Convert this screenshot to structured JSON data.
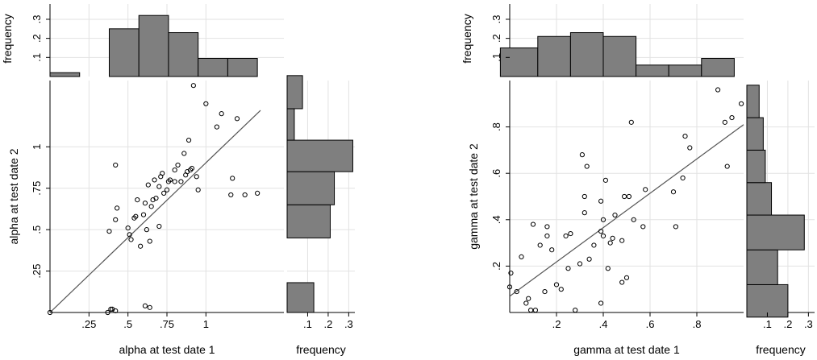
{
  "chart_data": [
    {
      "type": "scatter",
      "xlabel": "alpha at test date 1",
      "ylabel": "alpha at test date 2",
      "xlim": [
        0,
        1.5
      ],
      "ylim": [
        0,
        1.4
      ],
      "xticks": [
        {
          "v": 0.25,
          "label": ".25"
        },
        {
          "v": 0.5,
          "label": ".5"
        },
        {
          "v": 0.75,
          "label": ".75"
        },
        {
          "v": 1,
          "label": "1"
        }
      ],
      "yticks": [
        {
          "v": 0.25,
          "label": ".25"
        },
        {
          "v": 0.5,
          "label": ".5"
        },
        {
          "v": 0.75,
          "label": ".75"
        },
        {
          "v": 1,
          "label": "1"
        }
      ],
      "grid": true,
      "fit_line": {
        "x": [
          0,
          1.35
        ],
        "y": [
          0,
          1.22
        ]
      },
      "points": [
        [
          0,
          0
        ],
        [
          0.37,
          0
        ],
        [
          0.39,
          0.02
        ],
        [
          0.4,
          0.02
        ],
        [
          0.42,
          0.01
        ],
        [
          0.61,
          0.04
        ],
        [
          0.64,
          0.03
        ],
        [
          0.38,
          0.49
        ],
        [
          0.42,
          0.56
        ],
        [
          0.43,
          0.63
        ],
        [
          0.42,
          0.89
        ],
        [
          0.5,
          0.51
        ],
        [
          0.51,
          0.47
        ],
        [
          0.52,
          0.44
        ],
        [
          0.54,
          0.57
        ],
        [
          0.55,
          0.58
        ],
        [
          0.56,
          0.68
        ],
        [
          0.58,
          0.4
        ],
        [
          0.6,
          0.59
        ],
        [
          0.61,
          0.66
        ],
        [
          0.62,
          0.5
        ],
        [
          0.63,
          0.77
        ],
        [
          0.64,
          0.43
        ],
        [
          0.65,
          0.64
        ],
        [
          0.66,
          0.68
        ],
        [
          0.67,
          0.8
        ],
        [
          0.68,
          0.69
        ],
        [
          0.7,
          0.52
        ],
        [
          0.7,
          0.76
        ],
        [
          0.71,
          0.82
        ],
        [
          0.72,
          0.84
        ],
        [
          0.73,
          0.72
        ],
        [
          0.75,
          0.74
        ],
        [
          0.76,
          0.79
        ],
        [
          0.77,
          0.8
        ],
        [
          0.8,
          0.79
        ],
        [
          0.8,
          0.86
        ],
        [
          0.82,
          0.89
        ],
        [
          0.84,
          0.79
        ],
        [
          0.86,
          0.96
        ],
        [
          0.87,
          0.83
        ],
        [
          0.88,
          0.85
        ],
        [
          0.89,
          1.04
        ],
        [
          0.9,
          0.86
        ],
        [
          0.91,
          0.87
        ],
        [
          0.92,
          1.37
        ],
        [
          0.94,
          0.82
        ],
        [
          0.95,
          0.74
        ],
        [
          1.0,
          1.26
        ],
        [
          1.07,
          1.12
        ],
        [
          1.1,
          1.2
        ],
        [
          1.16,
          0.71
        ],
        [
          1.17,
          0.81
        ],
        [
          1.2,
          1.17
        ],
        [
          1.25,
          0.71
        ],
        [
          1.33,
          0.72
        ]
      ],
      "top_hist": {
        "ylabel": "frequency",
        "yticks": [
          {
            "v": 0.1,
            "label": ".1"
          },
          {
            "v": 0.2,
            "label": ".2"
          },
          {
            "v": 0.3,
            "label": ".3"
          }
        ],
        "ylim": [
          0,
          0.38
        ],
        "bins": [
          {
            "x0": 0.0,
            "x1": 0.19,
            "freq": 0.02
          },
          {
            "x0": 0.38,
            "x1": 0.57,
            "freq": 0.25
          },
          {
            "x0": 0.57,
            "x1": 0.76,
            "freq": 0.32
          },
          {
            "x0": 0.76,
            "x1": 0.95,
            "freq": 0.23
          },
          {
            "x0": 0.95,
            "x1": 1.14,
            "freq": 0.095
          },
          {
            "x0": 1.14,
            "x1": 1.33,
            "freq": 0.095
          }
        ]
      },
      "side_hist": {
        "xlabel": "frequency",
        "xticks": [
          {
            "v": 0.1,
            "label": ".1"
          },
          {
            "v": 0.2,
            "label": ".2"
          },
          {
            "v": 0.3,
            "label": ".3"
          }
        ],
        "xlim": [
          0,
          0.33
        ],
        "bins": [
          {
            "y0": 0.0,
            "y1": 0.18,
            "freq": 0.13
          },
          {
            "y0": 0.45,
            "y1": 0.65,
            "freq": 0.21
          },
          {
            "y0": 0.65,
            "y1": 0.85,
            "freq": 0.23
          },
          {
            "y0": 0.85,
            "y1": 1.04,
            "freq": 0.32
          },
          {
            "y0": 1.04,
            "y1": 1.23,
            "freq": 0.035
          },
          {
            "y0": 1.23,
            "y1": 1.43,
            "freq": 0.075
          }
        ]
      }
    },
    {
      "type": "scatter",
      "xlabel": "gamma at test date 1",
      "ylabel": "gamma at test date 2",
      "xlim": [
        0,
        1.0
      ],
      "ylim": [
        0,
        1.0
      ],
      "xticks": [
        {
          "v": 0.2,
          "label": ".2"
        },
        {
          "v": 0.4,
          "label": ".4"
        },
        {
          "v": 0.6,
          "label": ".6"
        },
        {
          "v": 0.8,
          "label": ".8"
        }
      ],
      "yticks": [
        {
          "v": 0.2,
          "label": ".2"
        },
        {
          "v": 0.4,
          "label": ".4"
        },
        {
          "v": 0.6,
          "label": ".6"
        },
        {
          "v": 0.8,
          "label": ".8"
        }
      ],
      "grid": true,
      "fit_line": {
        "x": [
          0,
          1.0
        ],
        "y": [
          0.07,
          0.81
        ]
      },
      "points": [
        [
          0.0,
          0.11
        ],
        [
          0.005,
          0.17
        ],
        [
          0.03,
          0.09
        ],
        [
          0.05,
          0.24
        ],
        [
          0.07,
          0.04
        ],
        [
          0.08,
          0.06
        ],
        [
          0.09,
          0.01
        ],
        [
          0.1,
          0.38
        ],
        [
          0.11,
          0.01
        ],
        [
          0.13,
          0.29
        ],
        [
          0.15,
          0.09
        ],
        [
          0.16,
          0.37
        ],
        [
          0.16,
          0.33
        ],
        [
          0.18,
          0.27
        ],
        [
          0.2,
          0.12
        ],
        [
          0.22,
          0.1
        ],
        [
          0.24,
          0.33
        ],
        [
          0.25,
          0.19
        ],
        [
          0.26,
          0.34
        ],
        [
          0.28,
          0.01
        ],
        [
          0.3,
          0.21
        ],
        [
          0.31,
          0.68
        ],
        [
          0.32,
          0.43
        ],
        [
          0.32,
          0.5
        ],
        [
          0.33,
          0.63
        ],
        [
          0.34,
          0.23
        ],
        [
          0.36,
          0.29
        ],
        [
          0.39,
          0.04
        ],
        [
          0.39,
          0.35
        ],
        [
          0.39,
          0.48
        ],
        [
          0.4,
          0.33
        ],
        [
          0.4,
          0.4
        ],
        [
          0.41,
          0.57
        ],
        [
          0.42,
          0.19
        ],
        [
          0.43,
          0.3
        ],
        [
          0.44,
          0.32
        ],
        [
          0.45,
          0.42
        ],
        [
          0.48,
          0.13
        ],
        [
          0.48,
          0.31
        ],
        [
          0.49,
          0.5
        ],
        [
          0.5,
          0.15
        ],
        [
          0.51,
          0.5
        ],
        [
          0.52,
          0.82
        ],
        [
          0.53,
          0.4
        ],
        [
          0.57,
          0.37
        ],
        [
          0.58,
          0.53
        ],
        [
          0.7,
          0.52
        ],
        [
          0.71,
          0.37
        ],
        [
          0.74,
          0.58
        ],
        [
          0.75,
          0.76
        ],
        [
          0.77,
          0.71
        ],
        [
          0.89,
          0.96
        ],
        [
          0.92,
          0.82
        ],
        [
          0.93,
          0.63
        ],
        [
          0.95,
          0.84
        ],
        [
          0.99,
          0.9
        ]
      ],
      "top_hist": {
        "ylabel": "frequency",
        "yticks": [
          {
            "v": 0.1,
            "label": ".1"
          },
          {
            "v": 0.2,
            "label": ".2"
          },
          {
            "v": 0.3,
            "label": ".3"
          }
        ],
        "ylim": [
          0,
          0.38
        ],
        "bins": [
          {
            "x0": -0.04,
            "x1": 0.12,
            "freq": 0.15
          },
          {
            "x0": 0.12,
            "x1": 0.26,
            "freq": 0.21
          },
          {
            "x0": 0.26,
            "x1": 0.4,
            "freq": 0.23
          },
          {
            "x0": 0.4,
            "x1": 0.54,
            "freq": 0.21
          },
          {
            "x0": 0.54,
            "x1": 0.68,
            "freq": 0.06
          },
          {
            "x0": 0.68,
            "x1": 0.82,
            "freq": 0.06
          },
          {
            "x0": 0.82,
            "x1": 0.96,
            "freq": 0.095
          }
        ]
      },
      "side_hist": {
        "xlabel": "frequency",
        "xticks": [
          {
            "v": 0.1,
            "label": ".1"
          },
          {
            "v": 0.2,
            "label": ".2"
          },
          {
            "v": 0.3,
            "label": ".3"
          }
        ],
        "xlim": [
          0,
          0.33
        ],
        "bins": [
          {
            "y0": -0.02,
            "y1": 0.12,
            "freq": 0.2
          },
          {
            "y0": 0.12,
            "y1": 0.27,
            "freq": 0.15
          },
          {
            "y0": 0.27,
            "y1": 0.42,
            "freq": 0.28
          },
          {
            "y0": 0.42,
            "y1": 0.56,
            "freq": 0.12
          },
          {
            "y0": 0.56,
            "y1": 0.7,
            "freq": 0.09
          },
          {
            "y0": 0.7,
            "y1": 0.84,
            "freq": 0.08
          },
          {
            "y0": 0.84,
            "y1": 0.98,
            "freq": 0.06
          }
        ]
      }
    }
  ]
}
